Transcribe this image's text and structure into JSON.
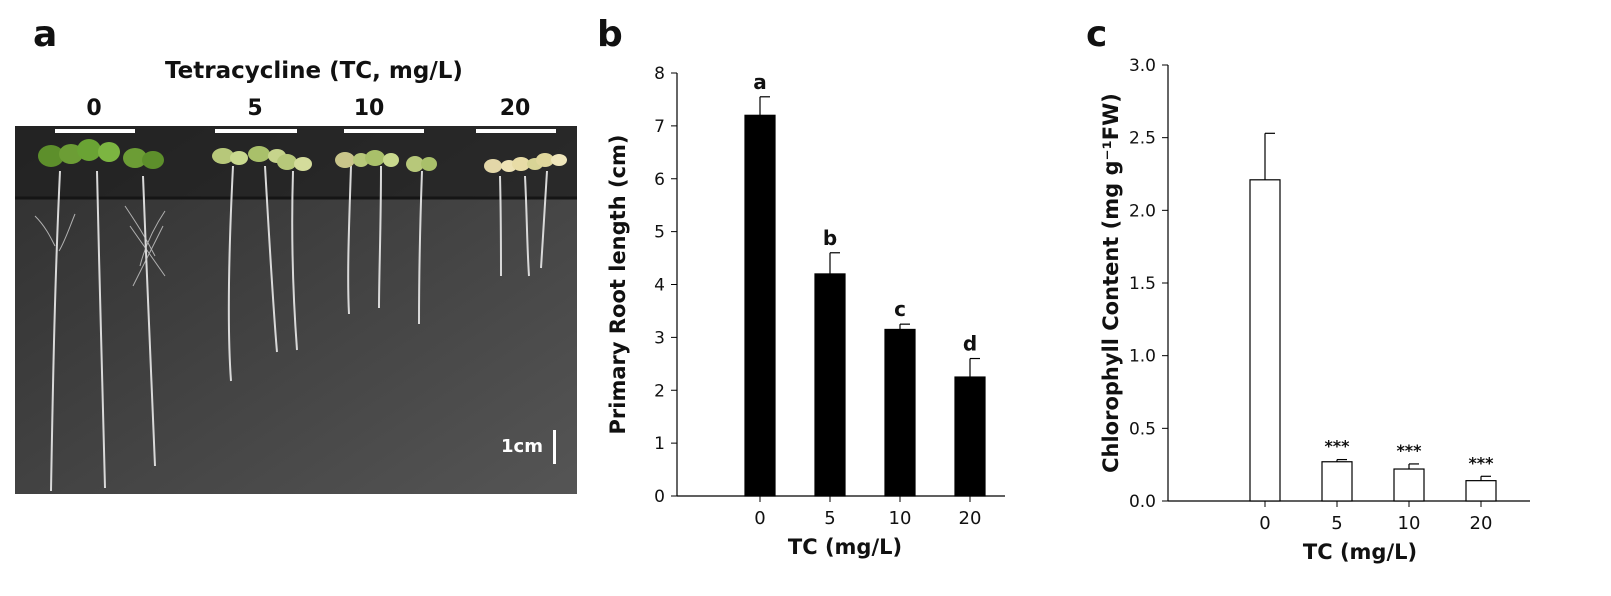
{
  "panels": {
    "a": {
      "letter": "a",
      "title": "Tetracycline (TC, mg/L)",
      "doses": [
        "0",
        "5",
        "10",
        "20"
      ],
      "scale_label": "1cm"
    },
    "b": {
      "letter": "b"
    },
    "c": {
      "letter": "c"
    }
  },
  "chart_data": [
    {
      "type": "bar",
      "categories": [
        "0",
        "5",
        "10",
        "20"
      ],
      "values": [
        7.2,
        4.2,
        3.15,
        2.25
      ],
      "errors": [
        0.35,
        0.4,
        0.1,
        0.35
      ],
      "annotations": [
        "a",
        "b",
        "c",
        "d"
      ],
      "xlabel": "TC (mg/L)",
      "ylabel": "Primary Root length (cm)",
      "ylim": [
        0,
        8
      ],
      "yticks": [
        "0",
        "1",
        "2",
        "3",
        "4",
        "5",
        "6",
        "7",
        "8"
      ],
      "bar_color": "#000000",
      "grid": false
    },
    {
      "type": "bar",
      "categories": [
        "0",
        "5",
        "10",
        "20"
      ],
      "values": [
        2.21,
        0.27,
        0.22,
        0.14
      ],
      "errors": [
        0.32,
        0.015,
        0.035,
        0.03
      ],
      "annotations": [
        "",
        "***",
        "***",
        "***"
      ],
      "xlabel": "TC (mg/L)",
      "ylabel": "Chlorophyll Content (mg g⁻¹FW)",
      "ylim": [
        0,
        3.0
      ],
      "yticks": [
        "0.0",
        "0.5",
        "1.0",
        "1.5",
        "2.0",
        "2.5",
        "3.0"
      ],
      "bar_color": "#ffffff",
      "grid": false
    }
  ]
}
